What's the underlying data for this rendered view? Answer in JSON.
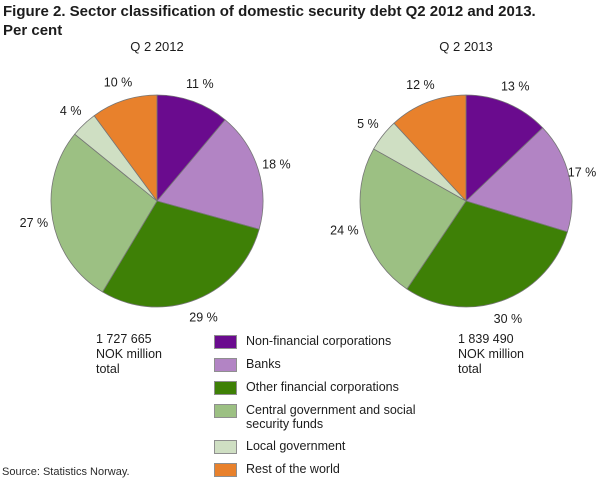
{
  "figure": {
    "title_lines": [
      "Figure 2. Sector classification of domestic security debt Q2 2012 and 2013.",
      "Per cent"
    ],
    "source": "Source: Statistics Norway."
  },
  "legend": {
    "items": [
      {
        "label": "Non-financial corporations",
        "color": "#6a0b8e"
      },
      {
        "label": "Banks",
        "color": "#b284c4"
      },
      {
        "label": "Other financial corporations",
        "color": "#3e8006"
      },
      {
        "label": "Central government and social security funds",
        "color": "#9cc083"
      },
      {
        "label": "Local government",
        "color": "#cfdfc3"
      },
      {
        "label": "Rest of the world",
        "color": "#e8812c"
      }
    ]
  },
  "chart_data": [
    {
      "type": "pie",
      "title": "Q 2 2012",
      "categories": [
        "Non-financial corporations",
        "Banks",
        "Other financial corporations",
        "Central government and social security funds",
        "Local government",
        "Rest of the world"
      ],
      "values": [
        11,
        18,
        29,
        27,
        4,
        10
      ],
      "value_labels": [
        "11 %",
        "18 %",
        "29 %",
        "27 %",
        "4 %",
        "10 %"
      ],
      "colors": [
        "#6a0b8e",
        "#b284c4",
        "#3e8006",
        "#9cc083",
        "#cfdfc3",
        "#e8812c"
      ],
      "total_lines": [
        "1 727 665",
        "NOK million",
        "total"
      ],
      "start_angle": "top",
      "direction": "clockwise"
    },
    {
      "type": "pie",
      "title": "Q 2 2013",
      "categories": [
        "Non-financial corporations",
        "Banks",
        "Other financial corporations",
        "Central government and social security funds",
        "Local government",
        "Rest of the world"
      ],
      "values": [
        13,
        17,
        30,
        24,
        5,
        12
      ],
      "value_labels": [
        "13 %",
        "17 %",
        "30 %",
        "24 %",
        "5 %",
        "12 %"
      ],
      "colors": [
        "#6a0b8e",
        "#b284c4",
        "#3e8006",
        "#9cc083",
        "#cfdfc3",
        "#e8812c"
      ],
      "total_lines": [
        "1 839 490",
        "NOK million",
        "total"
      ],
      "start_angle": "top",
      "direction": "clockwise"
    }
  ]
}
